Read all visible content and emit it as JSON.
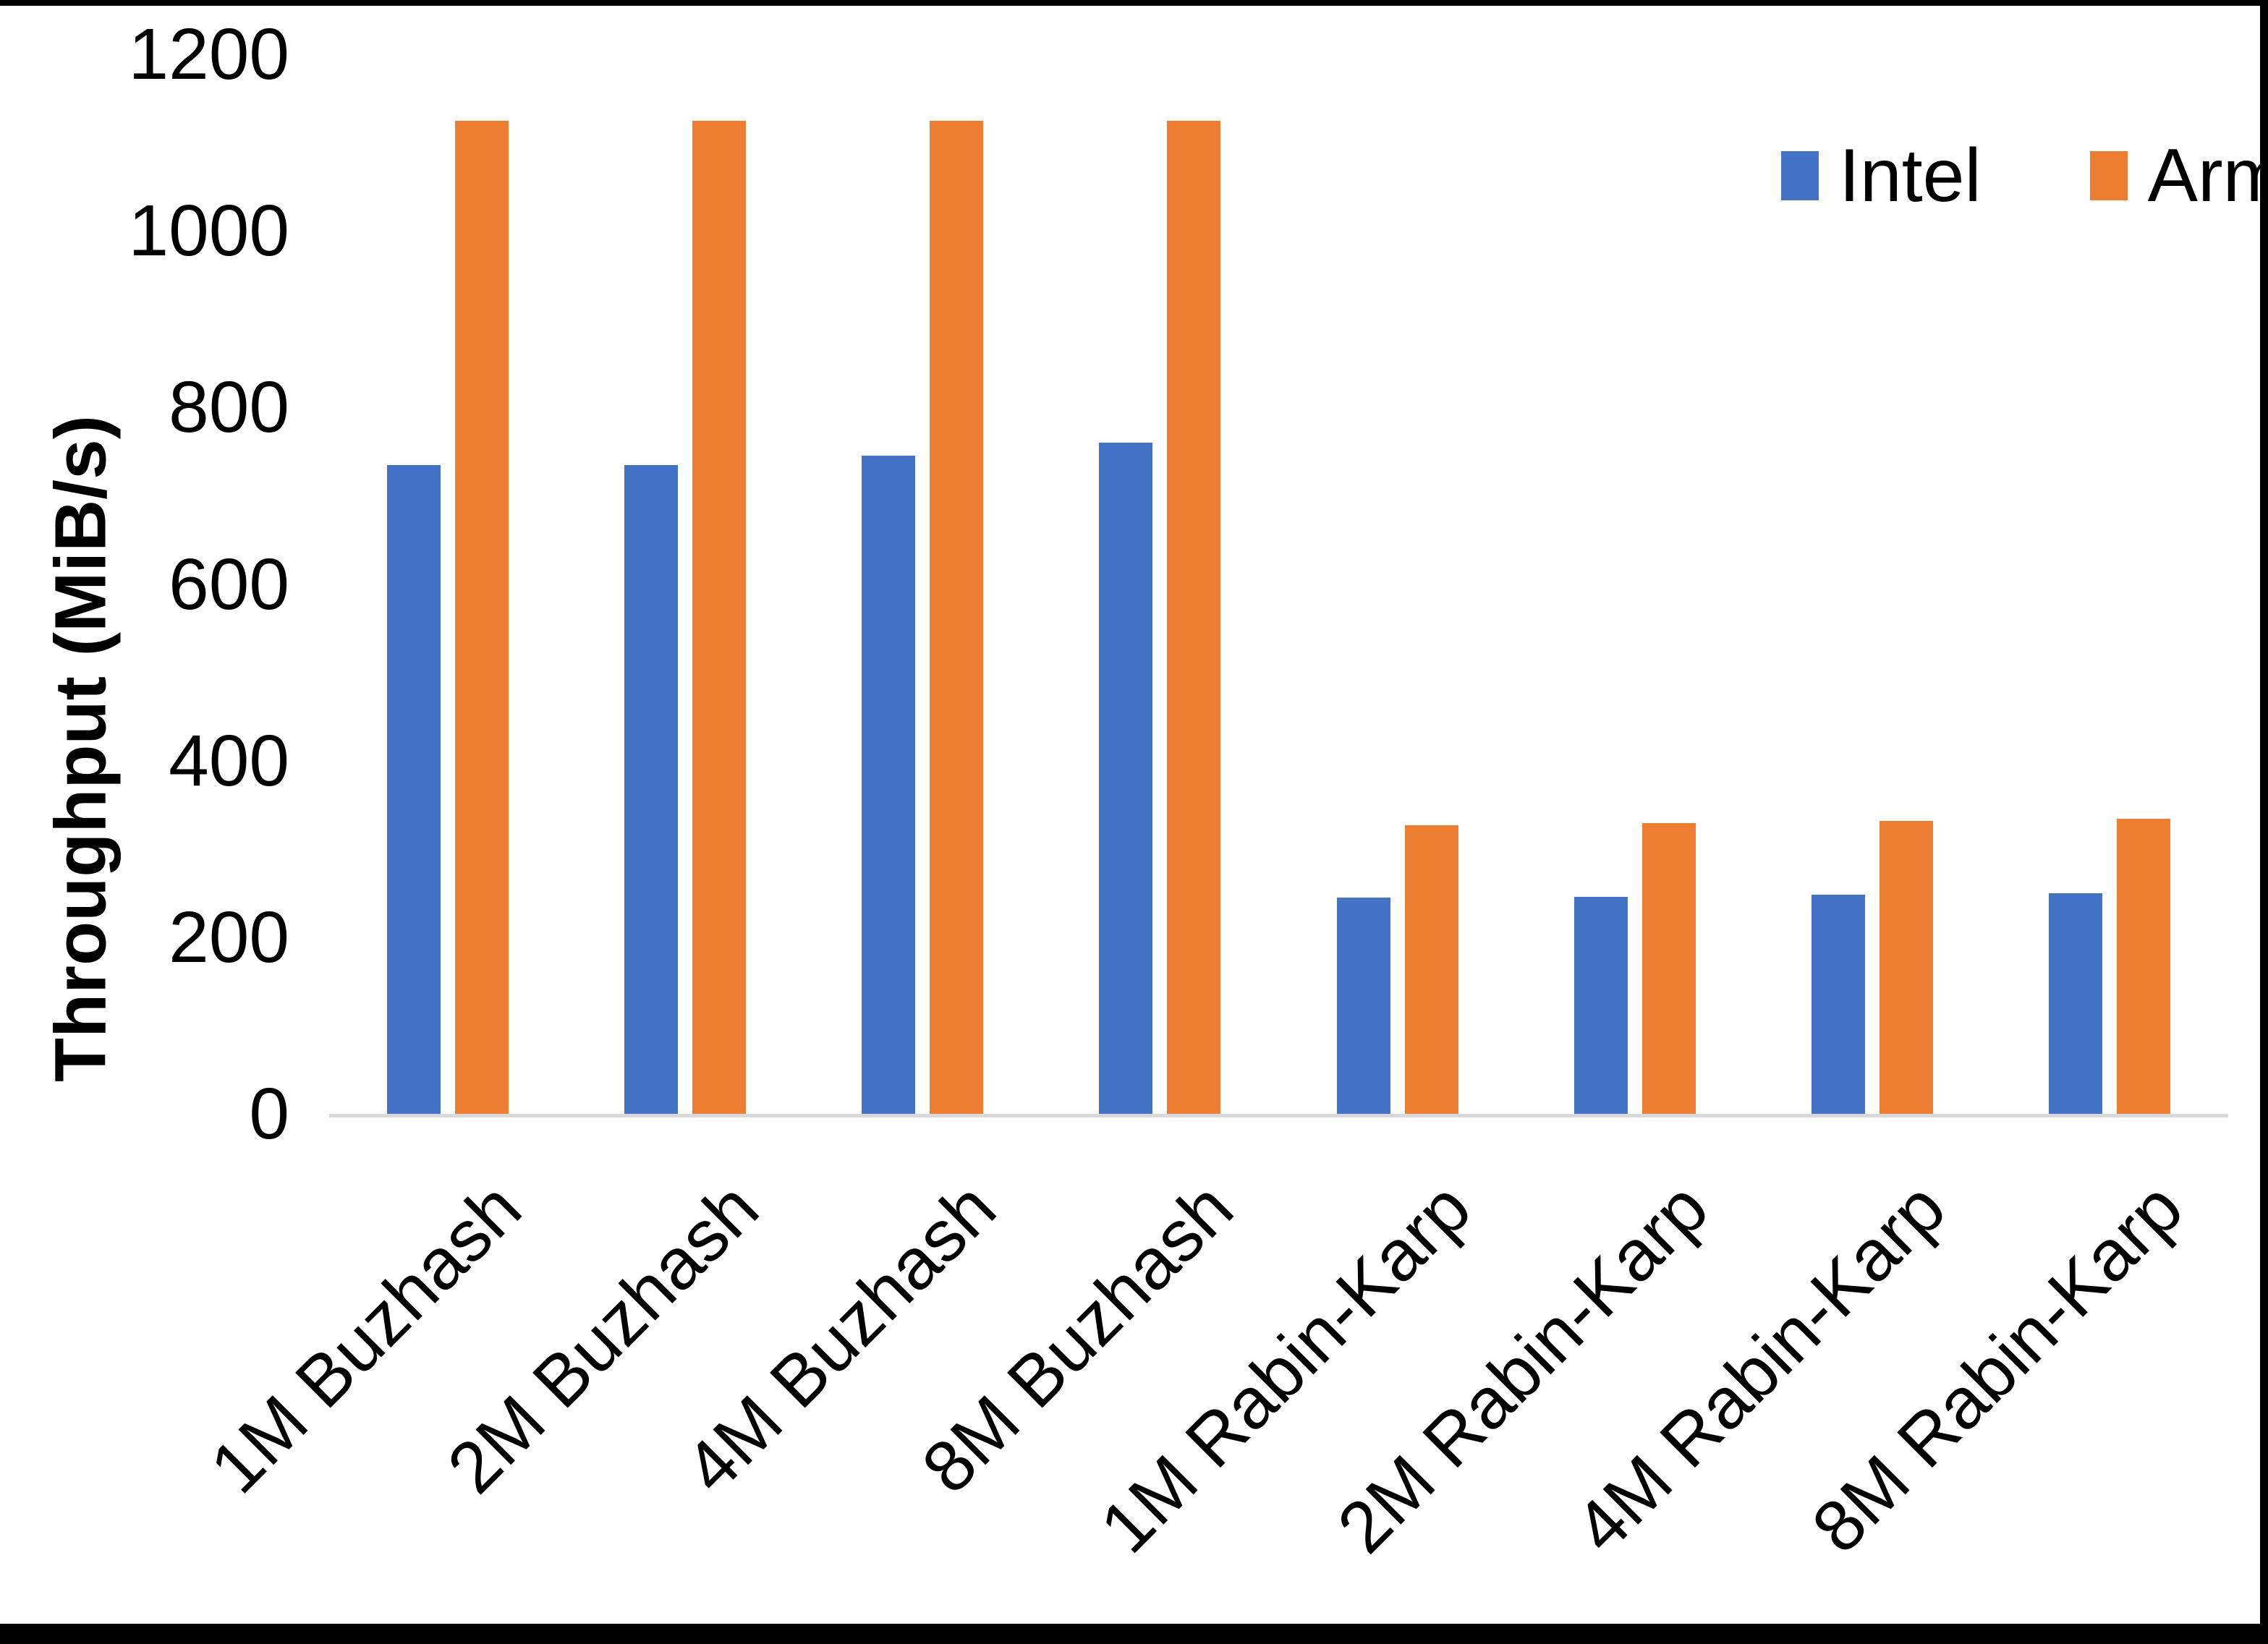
{
  "chart_data": {
    "type": "bar",
    "title": "",
    "xlabel": "",
    "ylabel": "Throughput (MiB/s)",
    "ylim": [
      0,
      1200
    ],
    "yticks": [
      0,
      200,
      400,
      600,
      800,
      1000,
      1200
    ],
    "grid": false,
    "legend_position": "top-right",
    "categories": [
      "1M Buzhash",
      "2M Buzhash",
      "4M Buzhash",
      "8M Buzhash",
      "1M Rabin-Karp",
      "2M Rabin-Karp",
      "4M Rabin-Karp",
      "8M Rabin-Karp"
    ],
    "series": [
      {
        "name": "Intel",
        "color": "#4472C4",
        "values": [
          735,
          735,
          745,
          760,
          245,
          246,
          248,
          250
        ]
      },
      {
        "name": "Arm",
        "color": "#ED7D31",
        "values": [
          1125,
          1125,
          1125,
          1125,
          327,
          329,
          332,
          334
        ]
      }
    ],
    "axis_line_color": "#D9D9D9",
    "text_color": "#000000",
    "background_color": "#FFFFFF"
  }
}
